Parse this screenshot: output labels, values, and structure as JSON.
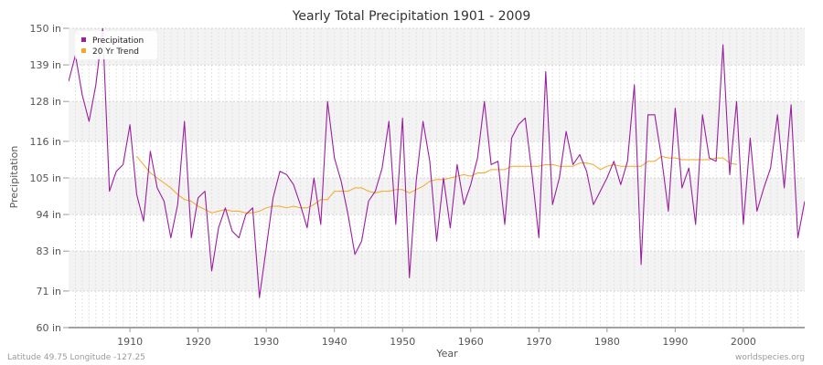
{
  "chart_data": {
    "type": "line",
    "title": "Yearly Total Precipitation 1901 - 2009",
    "xlabel": "Year",
    "ylabel": "Precipitation",
    "xlim": [
      1901,
      2009
    ],
    "ylim": [
      60,
      150
    ],
    "y_ticks": [
      "60 in",
      "71 in",
      "83 in",
      "94 in",
      "105 in",
      "116 in",
      "128 in",
      "139 in",
      "150 in"
    ],
    "x_ticks": [
      "1910",
      "1920",
      "1930",
      "1940",
      "1950",
      "1960",
      "1970",
      "1980",
      "1990",
      "2000"
    ],
    "grid": true,
    "legend_position": "top-left",
    "series": [
      {
        "name": "Precipitation",
        "color": "#9a1f9e",
        "x": [
          1901,
          1902,
          1903,
          1904,
          1905,
          1906,
          1907,
          1908,
          1909,
          1910,
          1911,
          1912,
          1913,
          1914,
          1915,
          1916,
          1917,
          1918,
          1919,
          1920,
          1921,
          1922,
          1923,
          1924,
          1925,
          1926,
          1927,
          1928,
          1929,
          1930,
          1931,
          1932,
          1933,
          1934,
          1935,
          1936,
          1937,
          1938,
          1939,
          1940,
          1941,
          1942,
          1943,
          1944,
          1945,
          1946,
          1947,
          1948,
          1949,
          1950,
          1951,
          1952,
          1953,
          1954,
          1955,
          1956,
          1957,
          1958,
          1959,
          1960,
          1961,
          1962,
          1963,
          1964,
          1965,
          1966,
          1967,
          1968,
          1969,
          1970,
          1971,
          1972,
          1973,
          1974,
          1975,
          1976,
          1977,
          1978,
          1979,
          1980,
          1981,
          1982,
          1983,
          1984,
          1985,
          1986,
          1987,
          1988,
          1989,
          1990,
          1991,
          1992,
          1993,
          1994,
          1995,
          1996,
          1997,
          1998,
          1999,
          2000,
          2001,
          2002,
          2003,
          2004,
          2005,
          2006,
          2007,
          2008,
          2009
        ],
        "values": [
          134,
          142,
          130,
          122,
          133,
          150,
          101,
          107,
          109,
          121,
          100,
          92,
          113,
          102,
          98,
          87,
          97,
          122,
          87,
          99,
          101,
          77,
          90,
          96,
          89,
          87,
          94,
          96,
          69,
          84,
          99,
          107,
          106,
          103,
          97,
          90,
          105,
          91,
          128,
          111,
          104,
          94,
          82,
          86,
          98,
          101,
          108,
          122,
          91,
          123,
          75,
          104,
          122,
          110,
          86,
          105,
          90,
          109,
          97,
          103,
          111,
          128,
          109,
          110,
          91,
          117,
          121,
          123,
          106,
          87,
          137,
          97,
          105,
          119,
          109,
          112,
          107,
          97,
          101,
          105,
          110,
          103,
          110,
          133,
          79,
          124,
          124,
          111,
          95,
          126,
          102,
          108,
          91,
          124,
          111,
          110,
          145,
          106,
          128,
          91,
          117,
          95,
          102,
          108,
          124,
          102,
          127,
          87,
          98
        ]
      },
      {
        "name": "20 Yr Trend",
        "color": "#f5a623",
        "x": [
          1911,
          1912,
          1913,
          1914,
          1915,
          1916,
          1917,
          1918,
          1919,
          1920,
          1921,
          1922,
          1923,
          1924,
          1925,
          1926,
          1927,
          1928,
          1929,
          1930,
          1931,
          1932,
          1933,
          1934,
          1935,
          1936,
          1937,
          1938,
          1939,
          1940,
          1941,
          1942,
          1943,
          1944,
          1945,
          1946,
          1947,
          1948,
          1949,
          1950,
          1951,
          1952,
          1953,
          1954,
          1955,
          1956,
          1957,
          1958,
          1959,
          1960,
          1961,
          1962,
          1963,
          1964,
          1965,
          1966,
          1967,
          1968,
          1969,
          1970,
          1971,
          1972,
          1973,
          1974,
          1975,
          1976,
          1977,
          1978,
          1979,
          1980,
          1981,
          1982,
          1983,
          1984,
          1985,
          1986,
          1987,
          1988,
          1989,
          1990,
          1991,
          1992,
          1993,
          1994,
          1995,
          1996,
          1997,
          1998,
          1999
        ],
        "values": [
          111.5,
          109,
          106.5,
          105,
          103.5,
          102,
          100,
          98.5,
          98,
          96.5,
          95.5,
          94.5,
          95,
          95.5,
          95,
          95,
          94.5,
          94.5,
          95,
          96,
          96.5,
          96.5,
          96,
          96.5,
          96,
          96,
          97,
          98.5,
          98.5,
          101,
          101,
          101,
          102,
          102,
          101,
          100.5,
          101,
          101,
          101.5,
          101.5,
          100.5,
          101.5,
          102.5,
          104,
          104.5,
          104.5,
          105,
          105.5,
          106,
          105.5,
          106.5,
          106.5,
          107.5,
          107.5,
          107.5,
          108.5,
          108.5,
          108.5,
          108.5,
          108.5,
          109,
          109,
          108.5,
          108.5,
          108.5,
          109.5,
          109.5,
          109,
          107.5,
          108.5,
          109,
          108.5,
          108.5,
          108.5,
          108.5,
          110,
          110,
          111.5,
          111,
          111,
          110.5,
          110.5,
          110.5,
          110.5,
          110.5,
          111,
          111,
          109.5,
          109
        ]
      }
    ]
  },
  "footer": {
    "left": "Latitude 49.75 Longitude -127.25",
    "right": "worldspecies.org"
  }
}
